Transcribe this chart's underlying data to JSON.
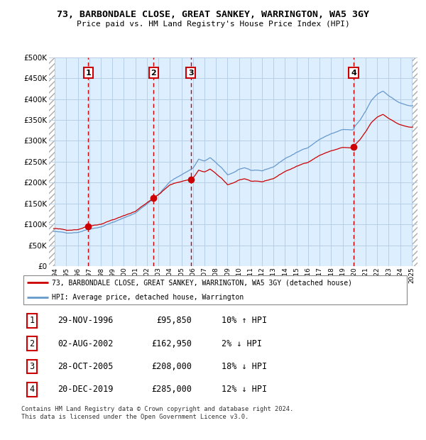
{
  "title": "73, BARBONDALE CLOSE, GREAT SANKEY, WARRINGTON, WA5 3GY",
  "subtitle": "Price paid vs. HM Land Registry's House Price Index (HPI)",
  "legend_label_red": "73, BARBONDALE CLOSE, GREAT SANKEY, WARRINGTON, WA5 3GY (detached house)",
  "legend_label_blue": "HPI: Average price, detached house, Warrington",
  "footer": "Contains HM Land Registry data © Crown copyright and database right 2024.\nThis data is licensed under the Open Government Licence v3.0.",
  "transactions": [
    {
      "num": 1,
      "date": "29-NOV-1996",
      "price": 95850,
      "x_year": 1996.91,
      "hpi_pct": "10% ↑ HPI"
    },
    {
      "num": 2,
      "date": "02-AUG-2002",
      "price": 162950,
      "x_year": 2002.58,
      "hpi_pct": "2% ↓ HPI"
    },
    {
      "num": 3,
      "date": "28-OCT-2005",
      "price": 208000,
      "x_year": 2005.82,
      "hpi_pct": "18% ↓ HPI"
    },
    {
      "num": 4,
      "date": "20-DEC-2019",
      "price": 285000,
      "x_year": 2019.96,
      "hpi_pct": "12% ↓ HPI"
    }
  ],
  "ylim": [
    0,
    500000
  ],
  "yticks": [
    0,
    50000,
    100000,
    150000,
    200000,
    250000,
    300000,
    350000,
    400000,
    450000,
    500000
  ],
  "xlim_lo": 1993.5,
  "xlim_hi": 2025.5,
  "xtick_years": [
    1994,
    1995,
    1996,
    1997,
    1998,
    1999,
    2000,
    2001,
    2002,
    2003,
    2004,
    2005,
    2006,
    2007,
    2008,
    2009,
    2010,
    2011,
    2012,
    2013,
    2014,
    2015,
    2016,
    2017,
    2018,
    2019,
    2020,
    2021,
    2022,
    2023,
    2024,
    2025
  ],
  "grid_color": "#b8cfe8",
  "plot_bg": "#ddeeff",
  "red_color": "#cc0000",
  "blue_color": "#6699cc"
}
